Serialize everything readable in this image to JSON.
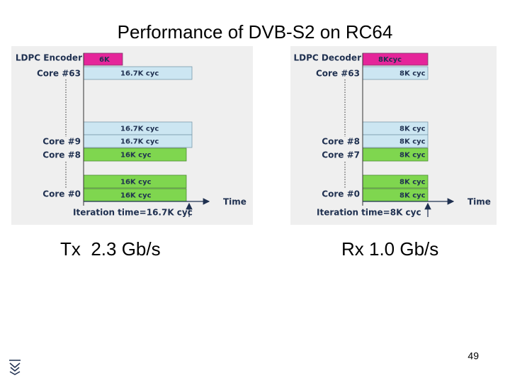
{
  "title": "Performance of DVB-S2 on RC64",
  "diagrams": [
    {
      "header": "LDPC Encoder",
      "header_bar": "6K",
      "cores": [
        "Core #63",
        "Core #9",
        "Core #8",
        "Core #0"
      ],
      "bars": [
        "16.7K cyc",
        "16.7K cyc",
        "16.7K cyc",
        "16K cyc",
        "16K cyc",
        "16K cyc"
      ],
      "time_label": "Time",
      "iteration": "Iteration time=16.7K cyc",
      "throughput": "Tx  2.3 Gb/s"
    },
    {
      "header": "LDPC Decoder",
      "header_bar": "8Kcyc",
      "cores": [
        "Core #63",
        "Core #8",
        "Core #7",
        "Core #0"
      ],
      "bars": [
        "8K cyc",
        "8K cyc",
        "8K cyc",
        "8K cyc",
        "8K cyc",
        "8K cyc"
      ],
      "time_label": "Time",
      "iteration": "Iteration time=8K cyc",
      "throughput": "Rx 1.0 Gb/s"
    }
  ],
  "page_number": "49"
}
